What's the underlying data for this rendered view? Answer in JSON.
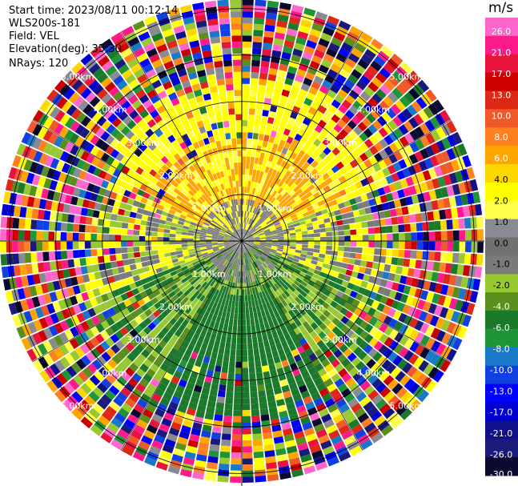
{
  "info": {
    "start_time": "Start time: 2023/08/11 00:12:14",
    "site": "WLS200s-181",
    "field": "Field: VEL",
    "elevation": "Elevation(deg): 35.30",
    "nrays": "NRays: 120"
  },
  "colorbar": {
    "unit": "m/s",
    "colors": [
      "#0a0a30",
      "#1a1a7a",
      "#10108a",
      "#0000d0",
      "#0000ff",
      "#1040e0",
      "#1a78c8",
      "#1e9638",
      "#1a7a2a",
      "#5a8f1e",
      "#98c832",
      "#7a7a7a",
      "#707070",
      "#8a8a92",
      "#ffff4a",
      "#ffff00",
      "#ffd700",
      "#ffa500",
      "#ff8020",
      "#f05a28",
      "#dc2814",
      "#cd0000",
      "#e8143c",
      "#ff1a8c",
      "#ff66cc"
    ],
    "labels": [
      "26.0",
      "21.0",
      "17.0",
      "13.0",
      "10.0",
      "8.0",
      "6.0",
      "4.0",
      "2.0",
      "1.0",
      "0.0",
      "-1.0",
      "-2.0",
      "-4.0",
      "-6.0",
      "-8.0",
      "-10.0",
      "-13.0",
      "-17.0",
      "-21.0",
      "-26.0",
      "-30.0"
    ]
  },
  "chart_data": {
    "type": "heatmap",
    "field": "VEL",
    "units": "m/s",
    "nrays": 120,
    "range_ring_labels": [
      "1.00km",
      "2.00km",
      "3.00km",
      "4.00km",
      "5.00km"
    ],
    "range_rings_km": [
      1,
      2,
      3,
      4,
      5
    ],
    "max_range_km": 5.2,
    "colorbar_range": [
      -30,
      26
    ]
  }
}
